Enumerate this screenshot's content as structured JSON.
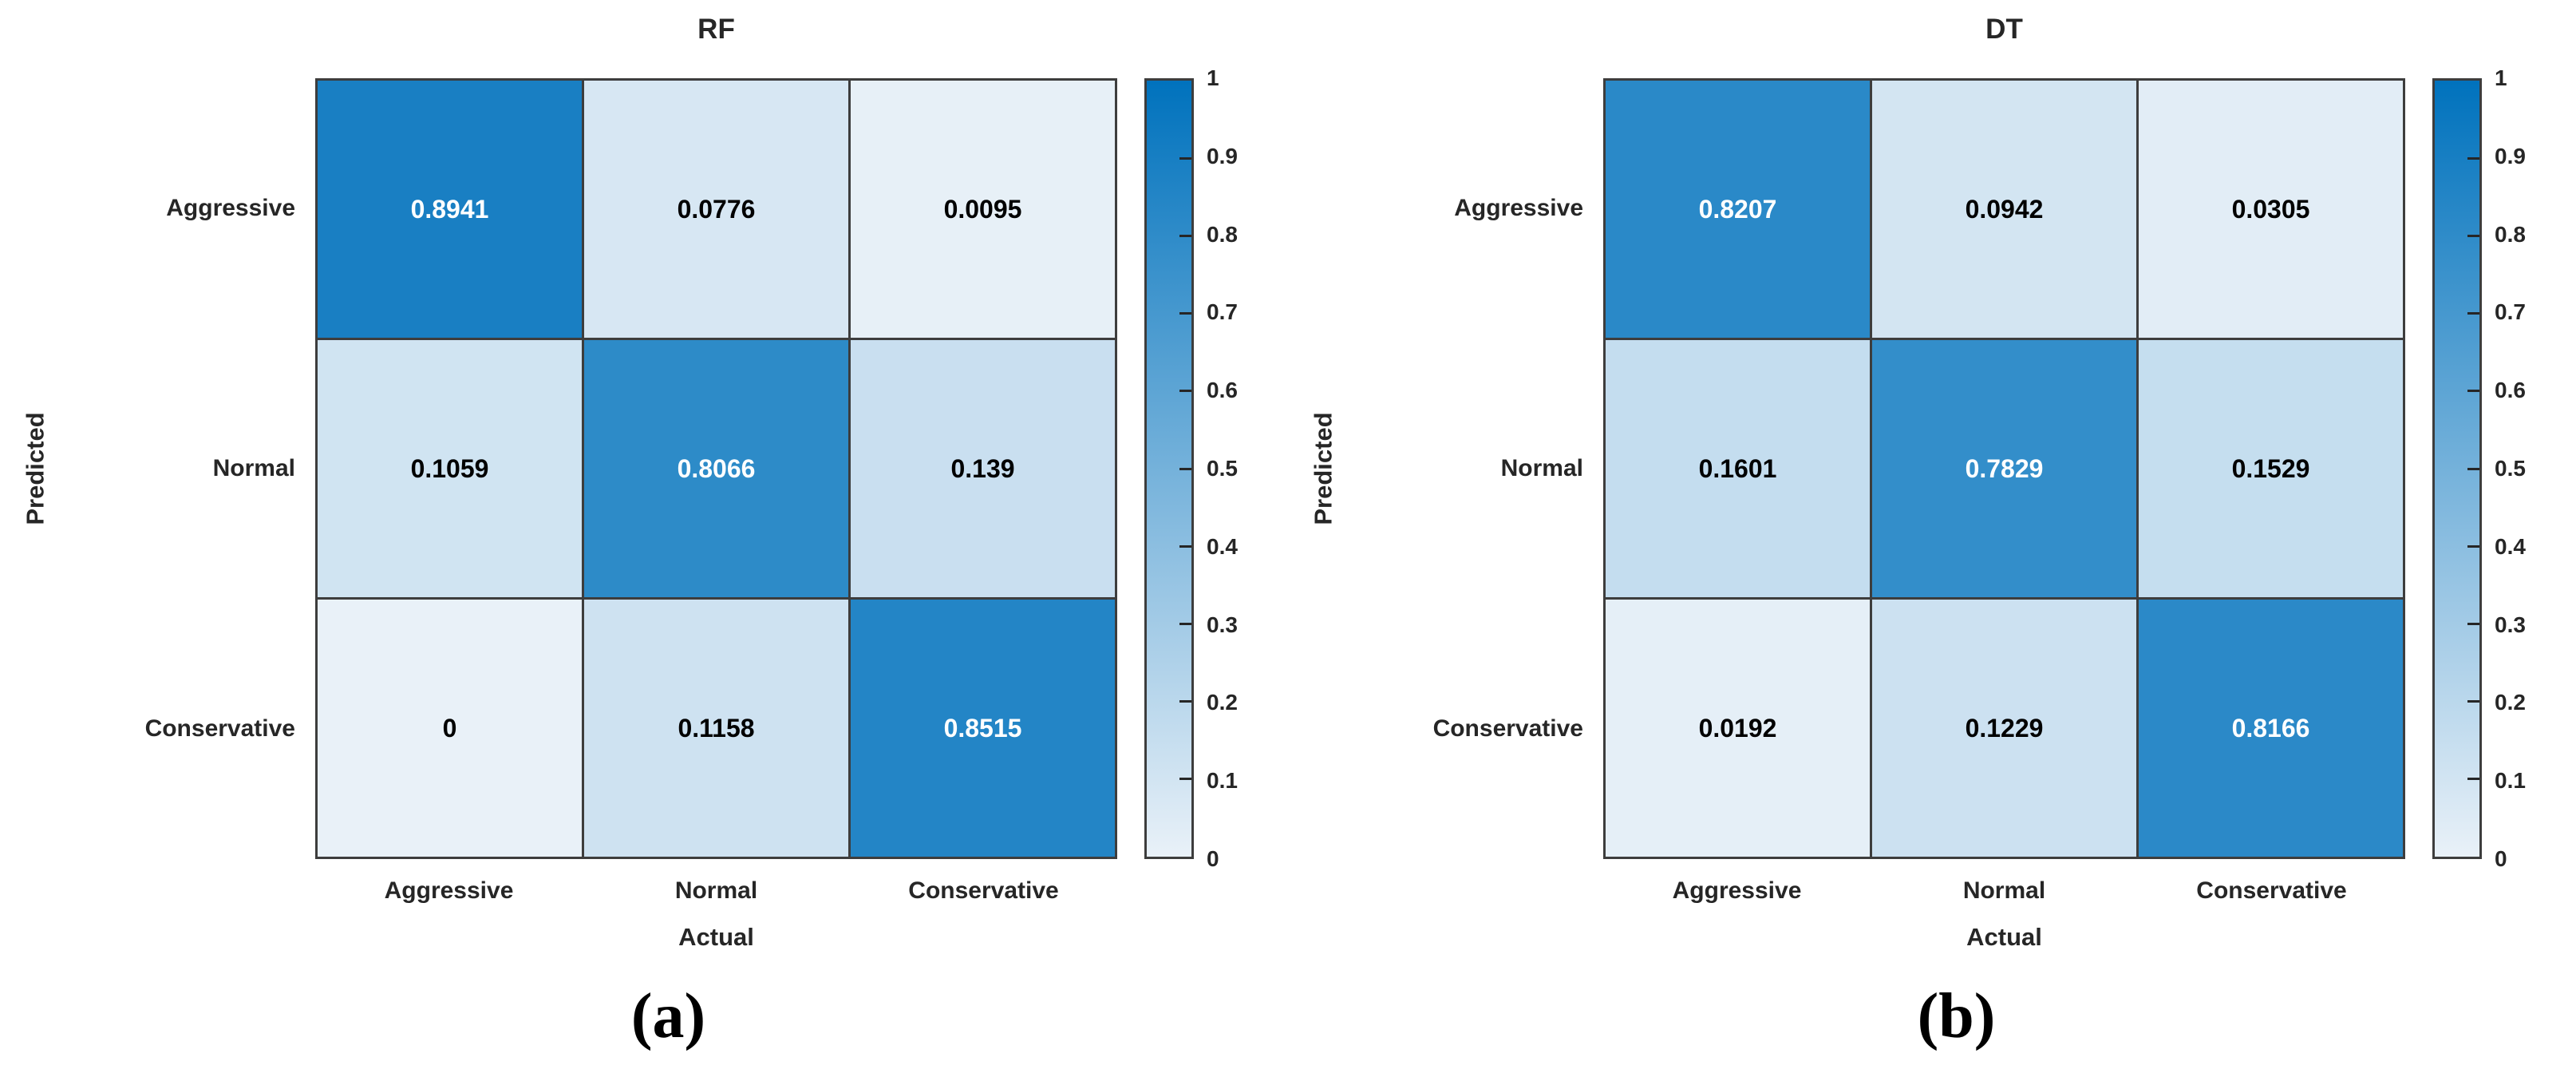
{
  "figure": {
    "background": "#ffffff",
    "text_color": "#262626",
    "grid_line_color": "#3d3d3d",
    "colormap_low": "#e9f1f8",
    "colormap_high": "#0072bd",
    "cell_text_light": "#ffffff",
    "cell_text_dark": "#000000",
    "cell_text_threshold": 0.5
  },
  "chart_data": [
    {
      "type": "heatmap",
      "title": "RF",
      "xlabel": "Actual",
      "ylabel": "Predicted",
      "x_categories": [
        "Aggressive",
        "Normal",
        "Conservative"
      ],
      "y_categories": [
        "Aggressive",
        "Normal",
        "Conservative"
      ],
      "values": [
        [
          0.8941,
          0.0776,
          0.0095
        ],
        [
          0.1059,
          0.8066,
          0.139
        ],
        [
          0,
          0.1158,
          0.8515
        ]
      ],
      "cell_labels": [
        [
          "0.8941",
          "0.0776",
          "0.0095"
        ],
        [
          "0.1059",
          "0.8066",
          "0.139"
        ],
        [
          "0",
          "0.1158",
          "0.8515"
        ]
      ],
      "colorbar": {
        "min": 0,
        "max": 1,
        "position": "right",
        "tick_values": [
          0,
          0.1,
          0.2,
          0.3,
          0.4,
          0.5,
          0.6,
          0.7,
          0.8,
          0.9,
          1
        ],
        "tick_labels": [
          "0",
          "0.1",
          "0.2",
          "0.3",
          "0.4",
          "0.5",
          "0.6",
          "0.7",
          "0.8",
          "0.9",
          "1"
        ]
      },
      "caption": "(a)"
    },
    {
      "type": "heatmap",
      "title": "DT",
      "xlabel": "Actual",
      "ylabel": "Predicted",
      "x_categories": [
        "Aggressive",
        "Normal",
        "Conservative"
      ],
      "y_categories": [
        "Aggressive",
        "Normal",
        "Conservative"
      ],
      "values": [
        [
          0.8207,
          0.0942,
          0.0305
        ],
        [
          0.1601,
          0.7829,
          0.1529
        ],
        [
          0.0192,
          0.1229,
          0.8166
        ]
      ],
      "cell_labels": [
        [
          "0.8207",
          "0.0942",
          "0.0305"
        ],
        [
          "0.1601",
          "0.7829",
          "0.1529"
        ],
        [
          "0.0192",
          "0.1229",
          "0.8166"
        ]
      ],
      "colorbar": {
        "min": 0,
        "max": 1,
        "position": "right",
        "tick_values": [
          0,
          0.1,
          0.2,
          0.3,
          0.4,
          0.5,
          0.6,
          0.7,
          0.8,
          0.9,
          1
        ],
        "tick_labels": [
          "0",
          "0.1",
          "0.2",
          "0.3",
          "0.4",
          "0.5",
          "0.6",
          "0.7",
          "0.8",
          "0.9",
          "1"
        ]
      },
      "caption": "(b)"
    }
  ]
}
